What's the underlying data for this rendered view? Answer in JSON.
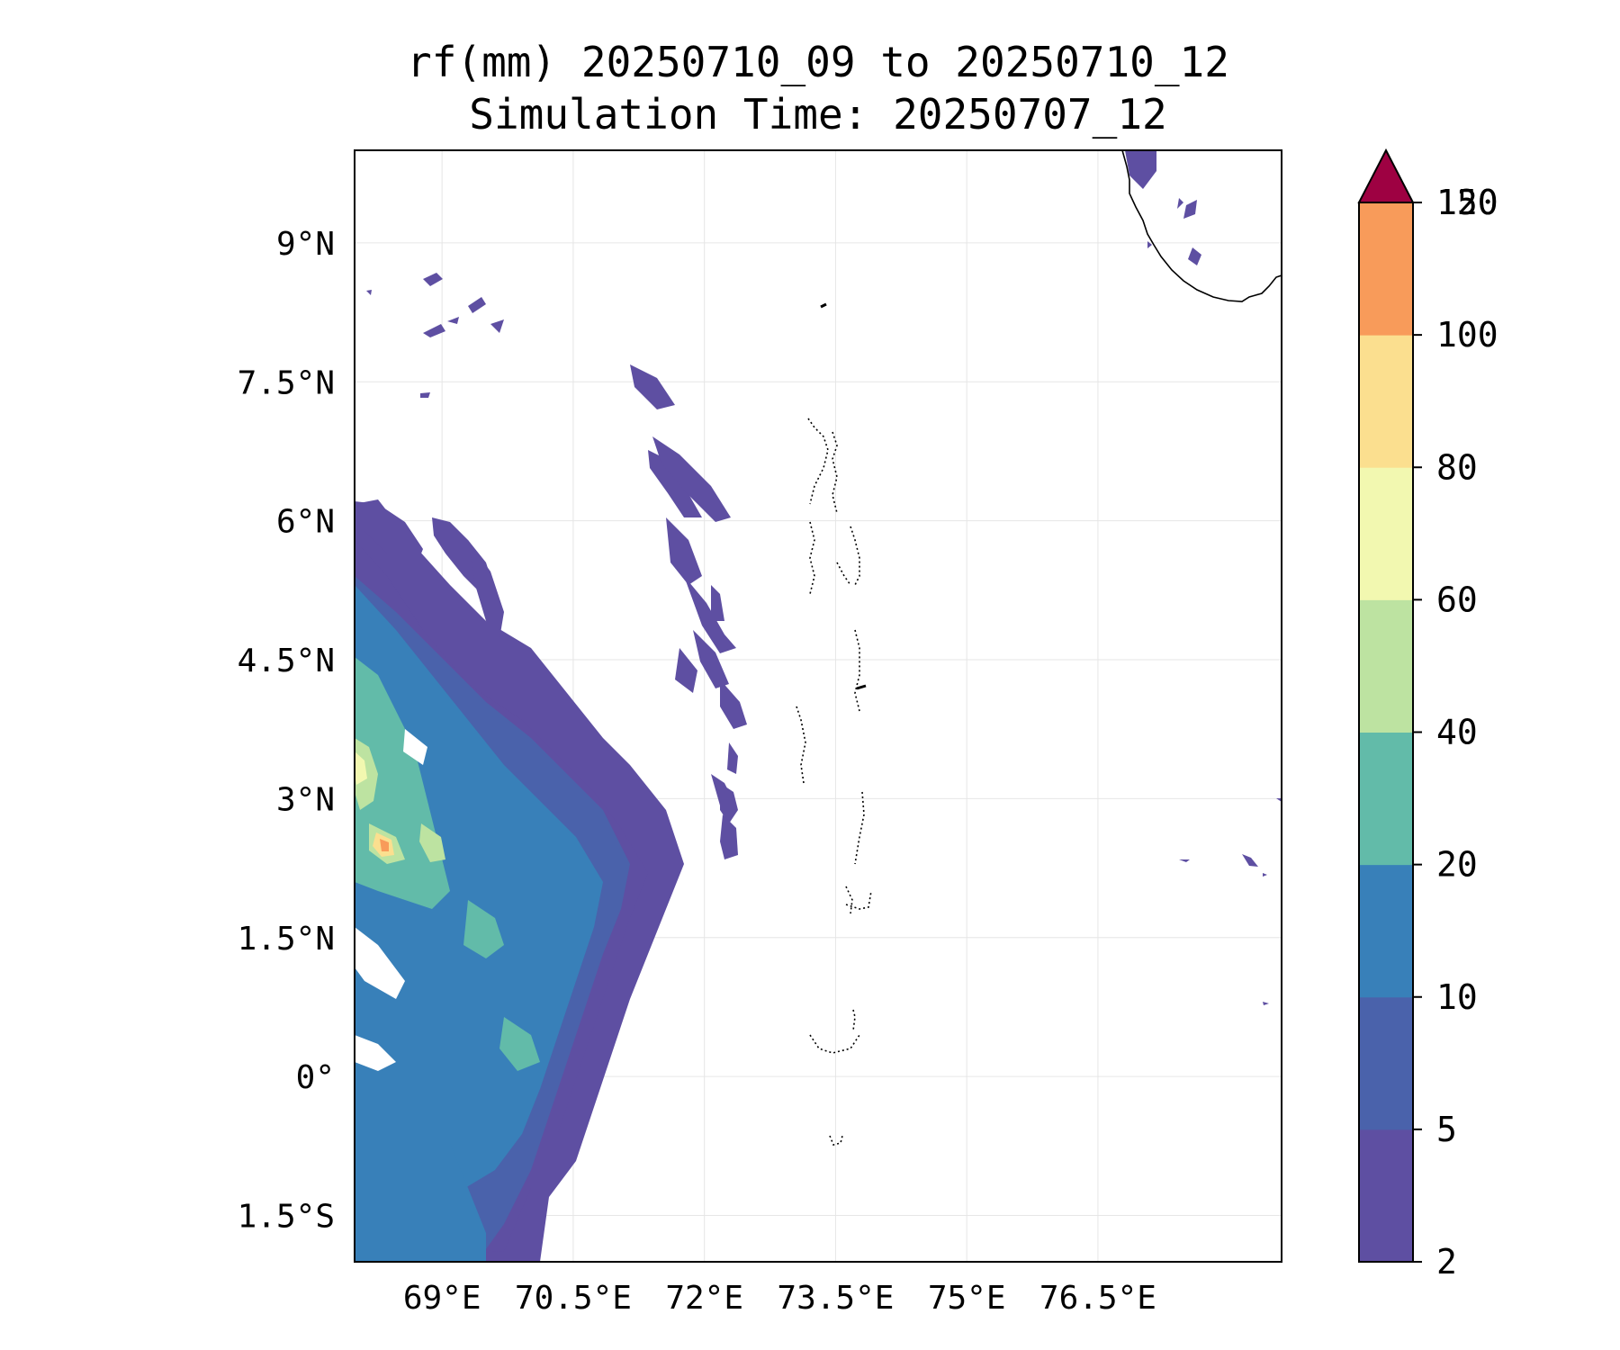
{
  "title": {
    "line1": "rf(mm) 20250710_09 to 20250710_12",
    "line2": "Simulation Time: 20250707_12"
  },
  "map": {
    "lon_range": [
      68.0,
      78.6
    ],
    "lat_range": [
      -2.0,
      10.0
    ],
    "x_ticks": [
      {
        "value": 69.0,
        "label": "69°E"
      },
      {
        "value": 70.5,
        "label": "70.5°E"
      },
      {
        "value": 72.0,
        "label": "72°E"
      },
      {
        "value": 73.5,
        "label": "73.5°E"
      },
      {
        "value": 75.0,
        "label": "75°E"
      },
      {
        "value": 76.5,
        "label": "76.5°E"
      }
    ],
    "y_ticks": [
      {
        "value": 9.0,
        "label": "9°N"
      },
      {
        "value": 7.5,
        "label": "7.5°N"
      },
      {
        "value": 6.0,
        "label": "6°N"
      },
      {
        "value": 4.5,
        "label": "4.5°N"
      },
      {
        "value": 3.0,
        "label": "3°N"
      },
      {
        "value": 1.5,
        "label": "1.5°N"
      },
      {
        "value": 0.0,
        "label": "0°"
      },
      {
        "value": -1.5,
        "label": "1.5°S"
      }
    ],
    "gridlines": true
  },
  "colorbar": {
    "extend": "max",
    "levels": [
      {
        "label": "2",
        "color": "#5e4fa2"
      },
      {
        "label": "5",
        "color": "#4a62ab"
      },
      {
        "label": "10",
        "color": "#3880b9"
      },
      {
        "label": "20",
        "color": "#62bba9"
      },
      {
        "label": "40",
        "color": "#bde3a1"
      },
      {
        "label": "60",
        "color": "#f2f8b0"
      },
      {
        "label": "80",
        "color": "#fbdf8f"
      },
      {
        "label": "100",
        "color": "#f89b5a"
      },
      {
        "label": "120",
        "color": "#d43d4e"
      },
      {
        "label": "150",
        "color": "#9e0142"
      }
    ]
  }
}
